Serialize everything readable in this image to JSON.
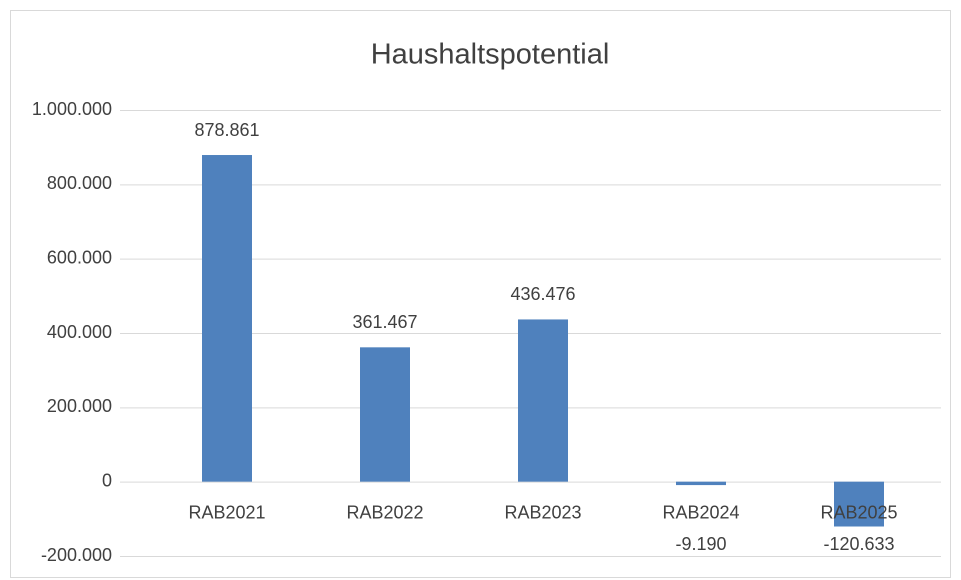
{
  "chart_data": {
    "type": "bar",
    "title": "Haushaltspotential",
    "categories": [
      "RAB2021",
      "RAB2022",
      "RAB2023",
      "RAB2024",
      "RAB2025"
    ],
    "values": [
      878861,
      361467,
      436476,
      -9190,
      -120633
    ],
    "value_labels": [
      "878.861",
      "361.467",
      "436.476",
      "-9.190",
      "-120.633"
    ],
    "color": "#4f81bd",
    "ylim": [
      -200000,
      1000000
    ],
    "yticks": [
      {
        "value": -200000,
        "label": "-200.000"
      },
      0,
      {
        "value": 200000,
        "label": "200.000"
      },
      {
        "value": 400000,
        "label": "400.000"
      },
      {
        "value": 600000,
        "label": "600.000"
      },
      {
        "value": 800000,
        "label": "800.000"
      },
      {
        "value": 1000000,
        "label": "1.000.000"
      }
    ],
    "grid": true
  }
}
